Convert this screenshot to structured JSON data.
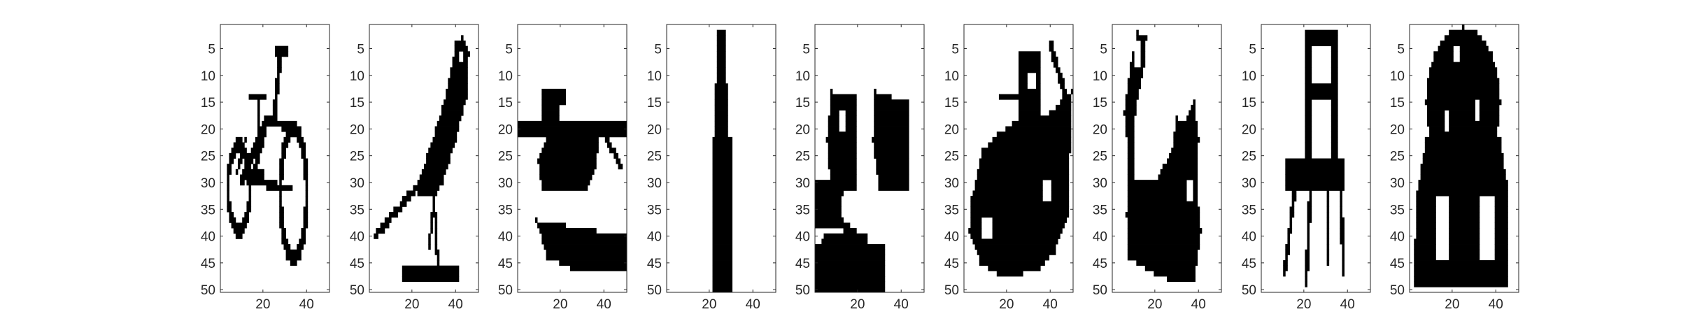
{
  "figure": {
    "background": "#ffffff",
    "axis_color": "#262626",
    "image_colormap": [
      "#ffffff",
      "#000000"
    ]
  },
  "chart_data": [
    {
      "type": "heatmap",
      "subject": "bicycle",
      "xlim": [
        0.5,
        50.5
      ],
      "ylim": [
        0.5,
        50.5
      ],
      "xticks": [
        20,
        40
      ],
      "yticks": [
        5,
        10,
        15,
        20,
        25,
        30,
        35,
        40,
        45,
        50
      ],
      "y_reversed": true
    },
    {
      "type": "heatmap",
      "subject": "bird",
      "xlim": [
        0.5,
        50.5
      ],
      "ylim": [
        0.5,
        50.5
      ],
      "xticks": [
        20,
        40
      ],
      "yticks": [
        5,
        10,
        15,
        20,
        25,
        30,
        35,
        40,
        45,
        50
      ],
      "y_reversed": true
    },
    {
      "type": "heatmap",
      "subject": "boat",
      "xlim": [
        0.5,
        50.5
      ],
      "ylim": [
        0.5,
        50.5
      ],
      "xticks": [
        20,
        40
      ],
      "yticks": [
        5,
        10,
        15,
        20,
        25,
        30,
        35,
        40,
        45,
        50
      ],
      "y_reversed": true
    },
    {
      "type": "heatmap",
      "subject": "bottle",
      "xlim": [
        0.5,
        50.5
      ],
      "ylim": [
        0.5,
        50.5
      ],
      "xticks": [
        20,
        40
      ],
      "yticks": [
        5,
        10,
        15,
        20,
        25,
        30,
        35,
        40,
        45,
        50
      ],
      "y_reversed": true
    },
    {
      "type": "heatmap",
      "subject": "chairs",
      "xlim": [
        0.5,
        50.5
      ],
      "ylim": [
        0.5,
        50.5
      ],
      "xticks": [
        20,
        40
      ],
      "yticks": [
        5,
        10,
        15,
        20,
        25,
        30,
        35,
        40,
        45,
        50
      ],
      "y_reversed": true
    },
    {
      "type": "heatmap",
      "subject": "bag",
      "xlim": [
        0.5,
        50.5
      ],
      "ylim": [
        0.5,
        50.5
      ],
      "xticks": [
        20,
        40
      ],
      "yticks": [
        5,
        10,
        15,
        20,
        25,
        30,
        35,
        40,
        45,
        50
      ],
      "y_reversed": true
    },
    {
      "type": "heatmap",
      "subject": "cat",
      "xlim": [
        0.5,
        50.5
      ],
      "ylim": [
        0.5,
        50.5
      ],
      "xticks": [
        20,
        40
      ],
      "yticks": [
        5,
        10,
        15,
        20,
        25,
        30,
        35,
        40,
        45,
        50
      ],
      "y_reversed": true
    },
    {
      "type": "heatmap",
      "subject": "chair",
      "xlim": [
        0.5,
        50.5
      ],
      "ylim": [
        0.5,
        50.5
      ],
      "xticks": [
        20,
        40
      ],
      "yticks": [
        5,
        10,
        15,
        20,
        25,
        30,
        35,
        40,
        45,
        50
      ],
      "y_reversed": true
    },
    {
      "type": "heatmap",
      "subject": "dog",
      "xlim": [
        0.5,
        50.5
      ],
      "ylim": [
        0.5,
        50.5
      ],
      "xticks": [
        20,
        40
      ],
      "yticks": [
        5,
        10,
        15,
        20,
        25,
        30,
        35,
        40,
        45,
        50
      ],
      "y_reversed": true
    }
  ]
}
